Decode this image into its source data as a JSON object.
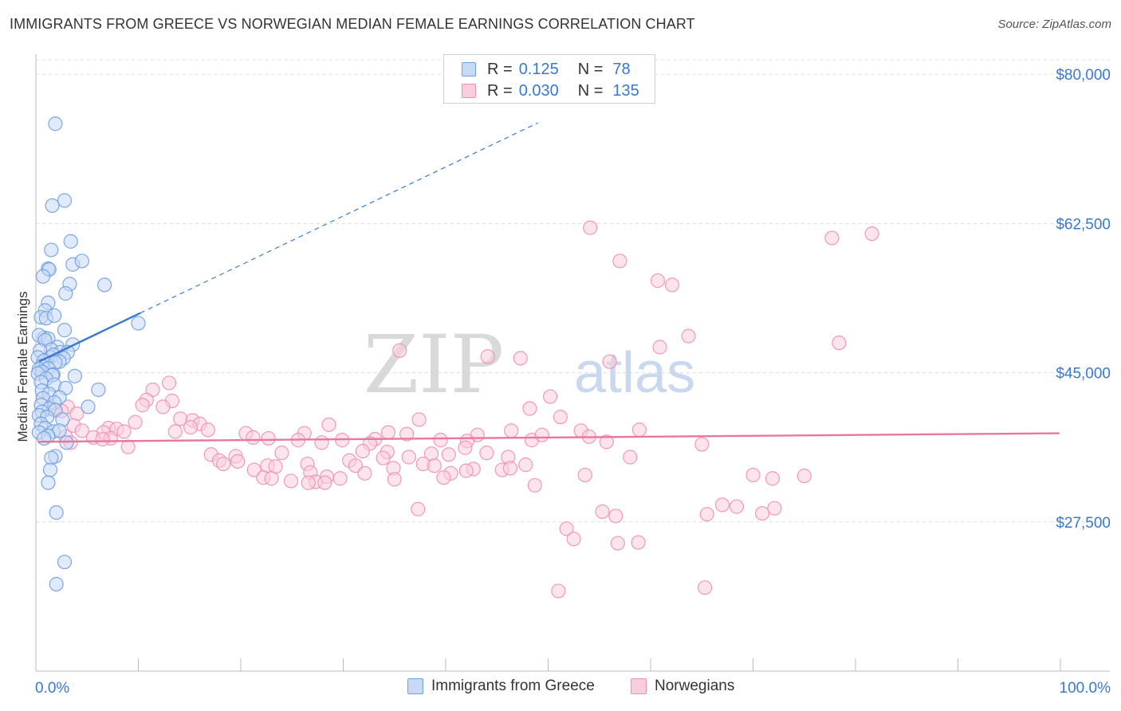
{
  "title": "IMMIGRANTS FROM GREECE VS NORWEGIAN MEDIAN FEMALE EARNINGS CORRELATION CHART",
  "source": "Source: ZipAtlas.com",
  "watermark": {
    "zip": "ZIP",
    "atlas": "atlas"
  },
  "legend": {
    "r_label": "R =",
    "n_label": "N =",
    "series": [
      {
        "r": "0.125",
        "n": "78",
        "color": "#6f9fe0",
        "fill": "#c6d9f5"
      },
      {
        "r": "0.030",
        "n": "135",
        "color": "#ef8fb0",
        "fill": "#f9cddd"
      }
    ]
  },
  "chart_data": {
    "type": "scatter",
    "title": "IMMIGRANTS FROM GREECE VS NORWEGIAN MEDIAN FEMALE EARNINGS CORRELATION CHART",
    "xlabel": "",
    "ylabel": "Median Female Earnings",
    "xlim": [
      0,
      100
    ],
    "ylim": [
      10000,
      81700
    ],
    "x_tick_labels": {
      "min": "0.0%",
      "max": "100.0%"
    },
    "y_ticks": [
      {
        "value": 80000,
        "label": "$80,000"
      },
      {
        "value": 62500,
        "label": "$62,500"
      },
      {
        "value": 45000,
        "label": "$45,000"
      },
      {
        "value": 27500,
        "label": "$27,500"
      }
    ],
    "grid": true,
    "legend_position": "bottom",
    "series": [
      {
        "name": "Immigrants from Greece",
        "color": "#6f9fe0",
        "fill": "#c6d9f5",
        "trend": {
          "solid": [
            [
              0.3,
              46300
            ],
            [
              10.2,
              52000
            ]
          ],
          "dashed": [
            [
              10.2,
              52000
            ],
            [
              49,
              74300
            ]
          ]
        },
        "points": [
          [
            1.9,
            74200
          ],
          [
            2.8,
            65200
          ],
          [
            1.6,
            64600
          ],
          [
            3.4,
            60400
          ],
          [
            1.5,
            59400
          ],
          [
            3.6,
            57700
          ],
          [
            4.5,
            58100
          ],
          [
            1.2,
            57200
          ],
          [
            1.3,
            57100
          ],
          [
            0.7,
            56300
          ],
          [
            3.3,
            55400
          ],
          [
            6.7,
            55300
          ],
          [
            2.9,
            54300
          ],
          [
            1.2,
            53200
          ],
          [
            0.9,
            52300
          ],
          [
            0.5,
            51500
          ],
          [
            1.0,
            51400
          ],
          [
            1.8,
            51700
          ],
          [
            10.0,
            50800
          ],
          [
            2.8,
            50000
          ],
          [
            0.8,
            49100
          ],
          [
            0.3,
            49400
          ],
          [
            1.2,
            49000
          ],
          [
            0.9,
            48800
          ],
          [
            3.6,
            48300
          ],
          [
            2.1,
            48000
          ],
          [
            1.5,
            47700
          ],
          [
            0.4,
            47600
          ],
          [
            2.4,
            47400
          ],
          [
            3.1,
            47400
          ],
          [
            1.4,
            46800
          ],
          [
            1.7,
            47100
          ],
          [
            2.7,
            46700
          ],
          [
            0.2,
            46800
          ],
          [
            0.8,
            46400
          ],
          [
            2.3,
            46300
          ],
          [
            1.9,
            46200
          ],
          [
            0.6,
            45800
          ],
          [
            1.2,
            45500
          ],
          [
            0.3,
            45400
          ],
          [
            0.6,
            45100
          ],
          [
            0.2,
            44900
          ],
          [
            1.7,
            44800
          ],
          [
            3.8,
            44600
          ],
          [
            1.6,
            44700
          ],
          [
            1.0,
            44300
          ],
          [
            0.5,
            43900
          ],
          [
            1.8,
            43600
          ],
          [
            2.9,
            43200
          ],
          [
            6.1,
            43000
          ],
          [
            0.6,
            42900
          ],
          [
            1.3,
            42500
          ],
          [
            0.7,
            42000
          ],
          [
            2.3,
            42100
          ],
          [
            1.8,
            41500
          ],
          [
            0.5,
            41200
          ],
          [
            5.1,
            41000
          ],
          [
            1.3,
            40800
          ],
          [
            1.9,
            40600
          ],
          [
            0.6,
            40400
          ],
          [
            0.3,
            40000
          ],
          [
            1.1,
            39800
          ],
          [
            2.6,
            39500
          ],
          [
            0.5,
            39000
          ],
          [
            0.9,
            38500
          ],
          [
            1.7,
            38100
          ],
          [
            2.3,
            38200
          ],
          [
            0.3,
            38000
          ],
          [
            1.2,
            37600
          ],
          [
            0.8,
            37300
          ],
          [
            1.9,
            35200
          ],
          [
            1.5,
            35000
          ],
          [
            1.4,
            33600
          ],
          [
            1.2,
            32100
          ],
          [
            2.0,
            28600
          ],
          [
            2.8,
            22800
          ],
          [
            2.0,
            20200
          ],
          [
            3.0,
            36800
          ]
        ]
      },
      {
        "name": "Norwegians",
        "color": "#ef8fb0",
        "fill": "#f9cddd",
        "trend": {
          "solid": [
            [
              0.2,
              36900
            ],
            [
              99.9,
              37900
            ]
          ]
        },
        "points": [
          [
            54.1,
            62000
          ],
          [
            77.7,
            60800
          ],
          [
            81.6,
            61300
          ],
          [
            57.0,
            58100
          ],
          [
            60.7,
            55800
          ],
          [
            62.1,
            55300
          ],
          [
            60.9,
            48000
          ],
          [
            63.7,
            49300
          ],
          [
            78.4,
            48500
          ],
          [
            35.5,
            47600
          ],
          [
            44.1,
            46900
          ],
          [
            47.3,
            46700
          ],
          [
            56.0,
            46300
          ],
          [
            13.0,
            43800
          ],
          [
            11.4,
            43000
          ],
          [
            50.2,
            42200
          ],
          [
            10.8,
            41800
          ],
          [
            13.3,
            41700
          ],
          [
            10.4,
            41200
          ],
          [
            12.4,
            41000
          ],
          [
            3.1,
            41000
          ],
          [
            48.2,
            40800
          ],
          [
            1.7,
            40700
          ],
          [
            2.5,
            40500
          ],
          [
            4.0,
            40200
          ],
          [
            51.2,
            39800
          ],
          [
            14.1,
            39600
          ],
          [
            37.4,
            39500
          ],
          [
            15.3,
            39400
          ],
          [
            9.7,
            39200
          ],
          [
            16.0,
            39000
          ],
          [
            28.6,
            38900
          ],
          [
            3.7,
            38800
          ],
          [
            15.1,
            38600
          ],
          [
            7.1,
            38500
          ],
          [
            7.9,
            38400
          ],
          [
            16.8,
            38300
          ],
          [
            4.5,
            38200
          ],
          [
            13.6,
            38100
          ],
          [
            6.6,
            38000
          ],
          [
            8.6,
            38100
          ],
          [
            46.4,
            38200
          ],
          [
            53.2,
            38200
          ],
          [
            20.5,
            37900
          ],
          [
            58.9,
            38300
          ],
          [
            34.4,
            38000
          ],
          [
            26.2,
            37900
          ],
          [
            36.2,
            37800
          ],
          [
            43.1,
            37700
          ],
          [
            54.0,
            37500
          ],
          [
            2.9,
            37500
          ],
          [
            5.6,
            37400
          ],
          [
            21.2,
            37400
          ],
          [
            7.3,
            37300
          ],
          [
            22.7,
            37300
          ],
          [
            6.5,
            37200
          ],
          [
            25.6,
            37100
          ],
          [
            29.9,
            37100
          ],
          [
            33.1,
            37200
          ],
          [
            39.5,
            37100
          ],
          [
            42.1,
            37000
          ],
          [
            48.4,
            37100
          ],
          [
            55.7,
            36900
          ],
          [
            3.4,
            36800
          ],
          [
            27.9,
            36800
          ],
          [
            32.6,
            36700
          ],
          [
            65.0,
            36600
          ],
          [
            9.0,
            36300
          ],
          [
            41.9,
            36200
          ],
          [
            34.3,
            35700
          ],
          [
            31.9,
            35800
          ],
          [
            44.0,
            35600
          ],
          [
            38.6,
            35500
          ],
          [
            24.0,
            35600
          ],
          [
            36.4,
            35100
          ],
          [
            40.3,
            35400
          ],
          [
            17.1,
            35400
          ],
          [
            19.5,
            35200
          ],
          [
            33.9,
            35000
          ],
          [
            46.1,
            35100
          ],
          [
            58.0,
            35100
          ],
          [
            17.9,
            34700
          ],
          [
            19.7,
            34600
          ],
          [
            30.6,
            34700
          ],
          [
            26.5,
            34300
          ],
          [
            37.8,
            34300
          ],
          [
            38.9,
            34100
          ],
          [
            47.8,
            34200
          ],
          [
            31.2,
            34100
          ],
          [
            22.6,
            34100
          ],
          [
            23.4,
            34000
          ],
          [
            34.9,
            33800
          ],
          [
            18.3,
            34300
          ],
          [
            42.7,
            33700
          ],
          [
            45.5,
            33600
          ],
          [
            21.3,
            33600
          ],
          [
            42.0,
            33500
          ],
          [
            46.3,
            33800
          ],
          [
            32.1,
            33200
          ],
          [
            40.5,
            33200
          ],
          [
            26.8,
            33300
          ],
          [
            53.6,
            33000
          ],
          [
            22.2,
            32700
          ],
          [
            28.4,
            32800
          ],
          [
            23.0,
            32600
          ],
          [
            39.8,
            32700
          ],
          [
            27.3,
            32200
          ],
          [
            35.0,
            32500
          ],
          [
            24.9,
            32300
          ],
          [
            26.6,
            32100
          ],
          [
            28.2,
            32100
          ],
          [
            29.7,
            32600
          ],
          [
            48.7,
            31800
          ],
          [
            67.0,
            29500
          ],
          [
            68.4,
            29300
          ],
          [
            70.0,
            33000
          ],
          [
            71.9,
            32600
          ],
          [
            75.0,
            32900
          ],
          [
            72.1,
            29100
          ],
          [
            37.3,
            29000
          ],
          [
            70.9,
            28500
          ],
          [
            55.3,
            28700
          ],
          [
            56.6,
            28200
          ],
          [
            65.5,
            28400
          ],
          [
            51.8,
            26700
          ],
          [
            52.5,
            25500
          ],
          [
            56.8,
            25000
          ],
          [
            58.8,
            25100
          ],
          [
            51.0,
            19400
          ],
          [
            65.3,
            19800
          ],
          [
            49.4,
            37700
          ]
        ]
      }
    ]
  }
}
